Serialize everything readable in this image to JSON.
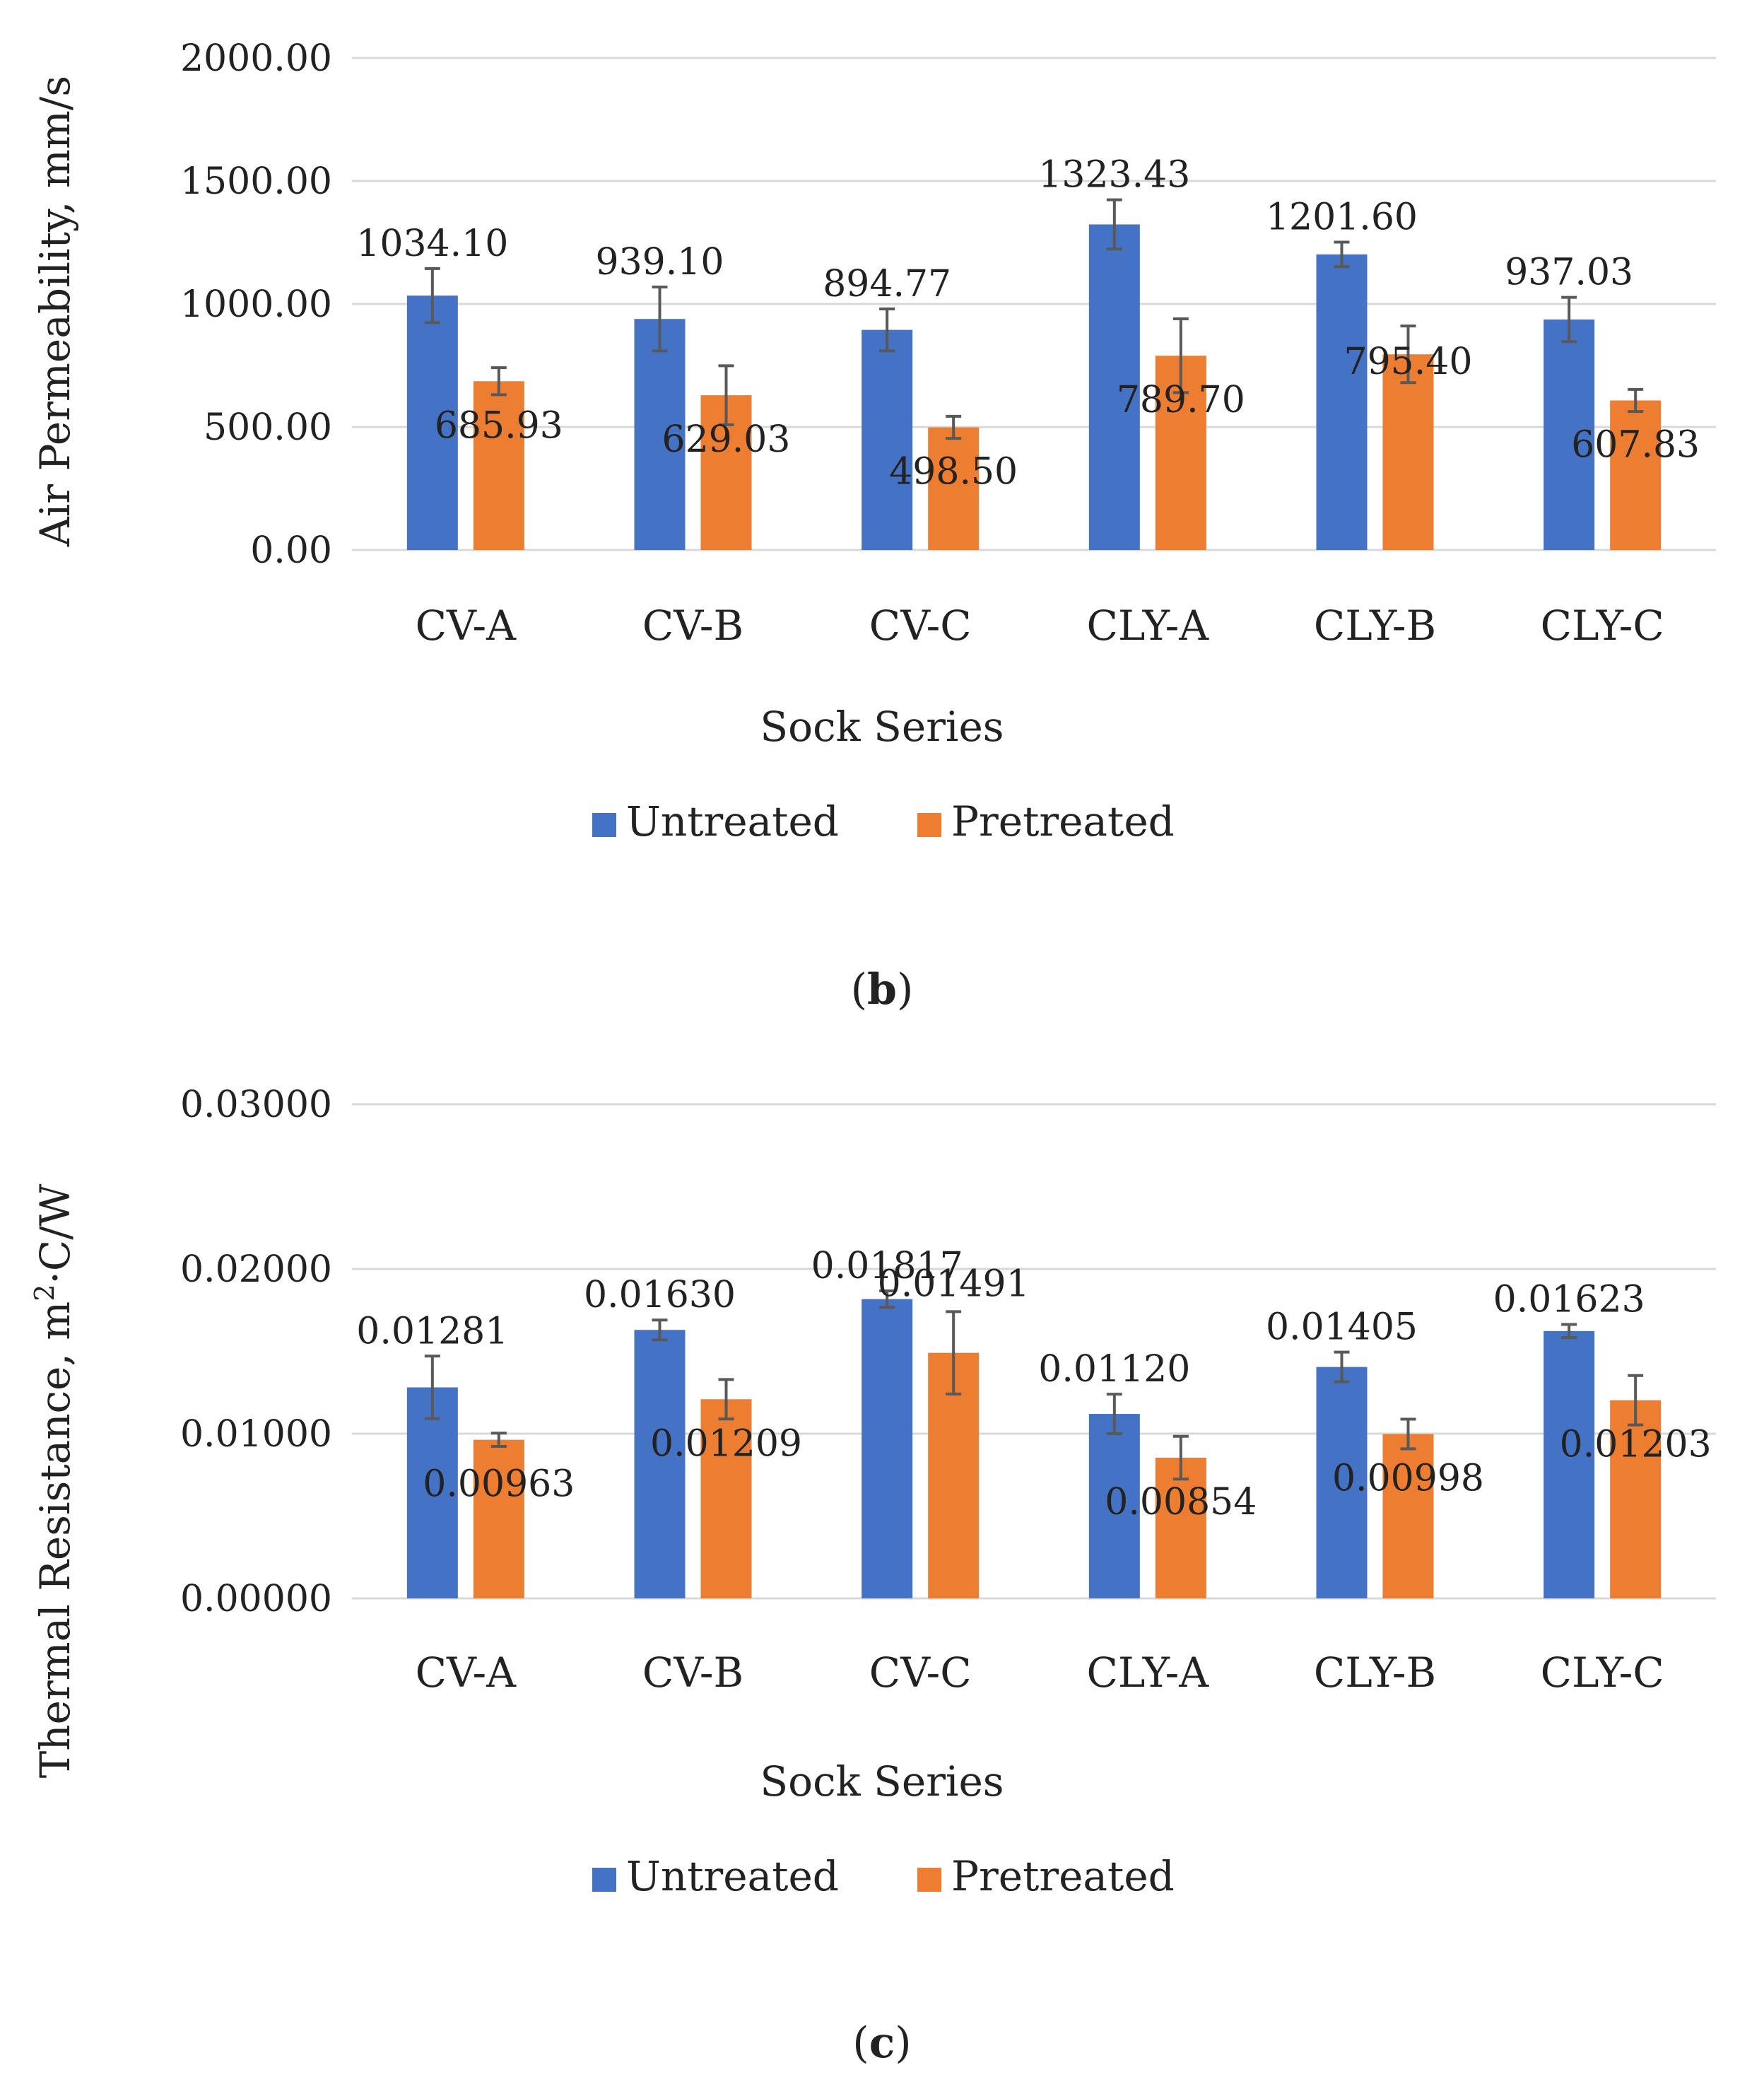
{
  "chart_data": [
    {
      "type": "bar",
      "panel_label": "b",
      "title": "",
      "xlabel": "Sock Series",
      "ylabel": "Air Permeability, mm/s",
      "ylim": [
        0,
        2000
      ],
      "yticks": [
        "0.00",
        "500.00",
        "1000.00",
        "1500.00",
        "2000.00"
      ],
      "ytick_values": [
        0,
        500,
        1000,
        1500,
        2000
      ],
      "grid": true,
      "legend_position": "bottom",
      "categories": [
        "CV-A",
        "CV-B",
        "CV-C",
        "CLY-A",
        "CLY-B",
        "CLY-C"
      ],
      "series": [
        {
          "name": "Untreated",
          "color": "#4472C4",
          "values": [
            1034.1,
            939.1,
            894.77,
            1323.43,
            1201.6,
            937.03
          ],
          "labels": [
            "1034.10",
            "939.10",
            "894.77",
            "1323.43",
            "1201.60",
            "937.03"
          ],
          "errors": [
            110,
            130,
            85,
            100,
            50,
            90
          ]
        },
        {
          "name": "Pretreated",
          "color": "#ED7D31",
          "values": [
            685.93,
            629.03,
            498.5,
            789.7,
            795.4,
            607.83
          ],
          "labels": [
            "685.93",
            "629.03",
            "498.50",
            "789.70",
            "795.40",
            "607.83"
          ],
          "errors": [
            55,
            120,
            45,
            150,
            115,
            45
          ]
        }
      ]
    },
    {
      "type": "bar",
      "panel_label": "c",
      "title": "",
      "xlabel": "Sock Series",
      "ylabel_main": "Thermal Resistance, m",
      "ylabel_sup": "2",
      "ylabel_rest": "·C/W",
      "ylim": [
        0,
        0.03
      ],
      "yticks": [
        "0.00000",
        "0.01000",
        "0.02000",
        "0.03000"
      ],
      "ytick_values": [
        0,
        0.01,
        0.02,
        0.03
      ],
      "grid": true,
      "legend_position": "bottom",
      "categories": [
        "CV-A",
        "CV-B",
        "CV-C",
        "CLY-A",
        "CLY-B",
        "CLY-C"
      ],
      "series": [
        {
          "name": "Untreated",
          "color": "#4472C4",
          "values": [
            0.01281,
            0.0163,
            0.01817,
            0.0112,
            0.01405,
            0.01623
          ],
          "labels": [
            "0.01281",
            "0.01630",
            "0.01817",
            "0.01120",
            "0.01405",
            "0.01623"
          ],
          "errors": [
            0.0019,
            0.0006,
            0.0005,
            0.0012,
            0.0009,
            0.0004
          ]
        },
        {
          "name": "Pretreated",
          "color": "#ED7D31",
          "values": [
            0.00963,
            0.01209,
            0.01491,
            0.00854,
            0.00998,
            0.01203
          ],
          "labels": [
            "0.00963",
            "0.01209",
            "0.01491",
            "0.00854",
            "0.00998",
            "0.01203"
          ],
          "errors": [
            0.0004,
            0.0012,
            0.0025,
            0.0013,
            0.0009,
            0.0015
          ]
        }
      ]
    }
  ]
}
